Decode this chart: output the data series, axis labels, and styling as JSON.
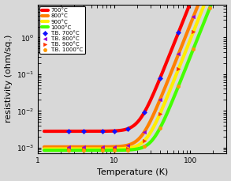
{
  "title": "",
  "xlabel": "Temperature (K)",
  "ylabel": "resistivity (ohm/sq.)",
  "xlim": [
    1,
    300
  ],
  "ylim": [
    0.0007,
    8
  ],
  "curves": [
    {
      "label": "700°C",
      "color": "#FF0000",
      "marker_color_sq": "#CC0000",
      "params": {
        "rho0": 0.0028,
        "rho1": 3.5e-10,
        "n": 5.2
      }
    },
    {
      "label": "800°C",
      "color": "#FF8000",
      "params": {
        "rho0": 0.00105,
        "rho1": 9e-11,
        "n": 5.2
      }
    },
    {
      "label": "900°C",
      "color": "#FFEE00",
      "params": {
        "rho0": 0.00092,
        "rho1": 3.5e-11,
        "n": 5.2
      }
    },
    {
      "label": "1000°C",
      "color": "#44FF00",
      "params": {
        "rho0": 0.00085,
        "rho1": 1.2e-11,
        "n": 5.2
      }
    }
  ],
  "tb_markers": [
    {
      "label": "T.B. 700°C",
      "color": "#1010FF",
      "marker": "D",
      "curve_index": 0
    },
    {
      "label": "T.B. 800°C",
      "color": "#9400D3",
      "marker": "<",
      "curve_index": 1
    },
    {
      "label": "T.B. 900°C",
      "color": "#FF3300",
      "marker": ">",
      "curve_index": 2
    },
    {
      "label": "T.B. 1000°C",
      "color": "#FF9900",
      "marker": "o",
      "curve_index": 3
    }
  ],
  "tb_temps": [
    2.5,
    4,
    7,
    10,
    15,
    25,
    40,
    70,
    110,
    180
  ],
  "background_color": "#d8d8d8",
  "legend_fontsize": 5.0,
  "axis_label_fontsize": 8,
  "tick_fontsize": 6.5,
  "linewidth": 3.0
}
